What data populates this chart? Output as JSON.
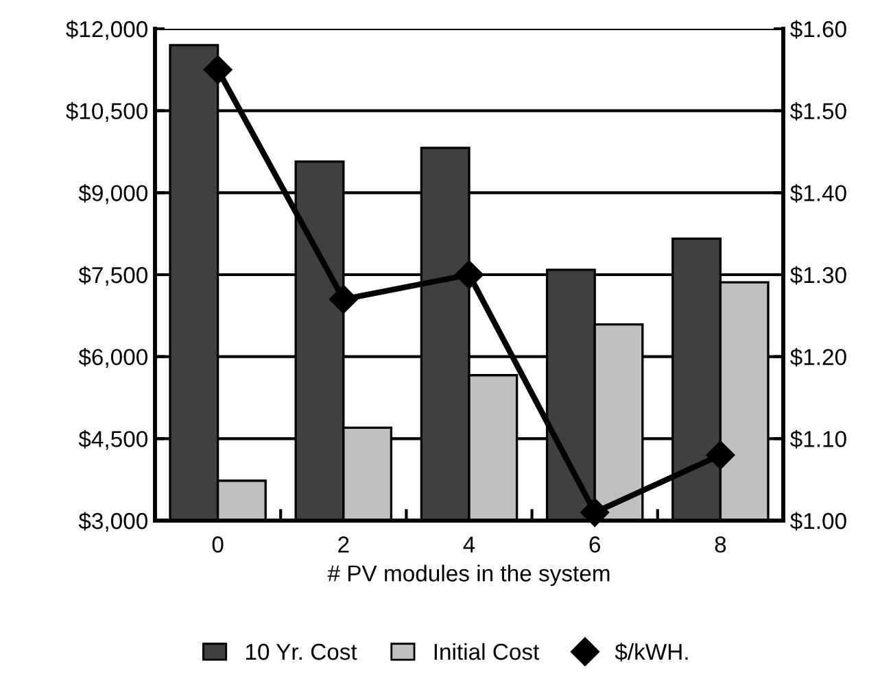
{
  "chart_data": {
    "type": "bar",
    "xlabel": "# PV modules in the system",
    "categories": [
      "0",
      "2",
      "4",
      "6",
      "8"
    ],
    "series": [
      {
        "name": "10 Yr. Cost",
        "color": "#404040",
        "values": [
          11700,
          9570,
          9820,
          7590,
          8160
        ]
      },
      {
        "name": "Initial Cost",
        "color": "#c0c0c0",
        "values": [
          3730,
          4700,
          5660,
          6590,
          7360
        ]
      },
      {
        "name": "$/kWH.",
        "type": "line",
        "axis": "y2",
        "color": "#000000",
        "values": [
          1.55,
          1.27,
          1.3,
          1.01,
          1.08
        ]
      }
    ],
    "ylim": [
      3000,
      12000
    ],
    "yticks": [
      {
        "value": 3000,
        "label": "$3,000"
      },
      {
        "value": 4500,
        "label": "$4,500"
      },
      {
        "value": 6000,
        "label": "$6,000"
      },
      {
        "value": 7500,
        "label": "$7,500"
      },
      {
        "value": 9000,
        "label": "$9,000"
      },
      {
        "value": 10500,
        "label": "$10,500"
      },
      {
        "value": 12000,
        "label": "$12,000"
      }
    ],
    "y2lim": [
      1.0,
      1.6
    ],
    "y2ticks": [
      {
        "value": 1.0,
        "label": "$1.00"
      },
      {
        "value": 1.1,
        "label": "$1.10"
      },
      {
        "value": 1.2,
        "label": "$1.20"
      },
      {
        "value": 1.3,
        "label": "$1.30"
      },
      {
        "value": 1.4,
        "label": "$1.40"
      },
      {
        "value": 1.5,
        "label": "$1.50"
      },
      {
        "value": 1.6,
        "label": "$1.60"
      }
    ],
    "grid": "y",
    "legend": "bottom",
    "marker": "diamond",
    "line_style": "solid"
  }
}
